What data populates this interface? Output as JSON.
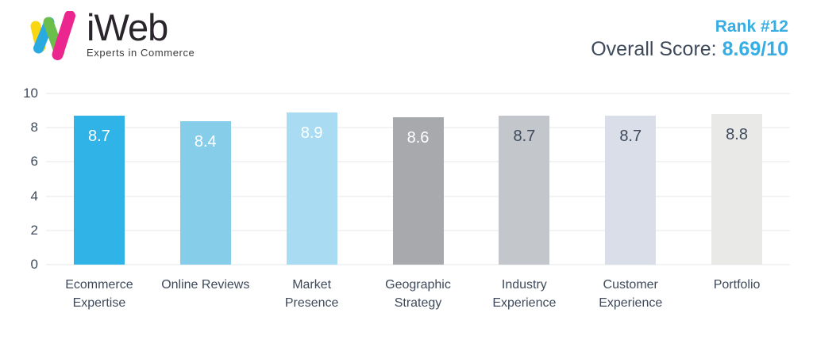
{
  "header": {
    "logo": {
      "brand": "iWeb",
      "tagline": "Experts in Commerce"
    },
    "rank_label": "Rank #12",
    "overall_score_label": "Overall Score:",
    "overall_score_value": "8.69/10"
  },
  "colors": {
    "accent_blue": "#36ade4",
    "dark_text": "#3e4a5b",
    "brand_dark": "#29252b",
    "gridline": "#f2f3f4",
    "logo_yellow": "#f8d712",
    "logo_blue": "#29abe2",
    "logo_green": "#6bbe4b",
    "logo_pink": "#ec268f"
  },
  "chart_data": {
    "type": "bar",
    "categories": [
      "Ecommerce Expertise",
      "Online Reviews",
      "Market Presence",
      "Geographic Strategy",
      "Industry Experience",
      "Customer Experience",
      "Portfolio"
    ],
    "values": [
      8.7,
      8.4,
      8.9,
      8.6,
      8.7,
      8.7,
      8.8
    ],
    "bar_colors": [
      "#30b4e8",
      "#86cde9",
      "#a9dcf3",
      "#a7a9ac",
      "#c3c6cb",
      "#dadee8",
      "#e9e9e8"
    ],
    "value_label_colors": [
      "#ffffff",
      "#ffffff",
      "#ffffff",
      "#ffffff",
      "#3e4a5b",
      "#3e4a5b",
      "#3e4a5b"
    ],
    "title": "",
    "xlabel": "",
    "ylabel": "",
    "ylim": [
      0,
      10
    ],
    "yticks": [
      0,
      2,
      4,
      6,
      8,
      10
    ],
    "grid": true,
    "legend": false
  }
}
